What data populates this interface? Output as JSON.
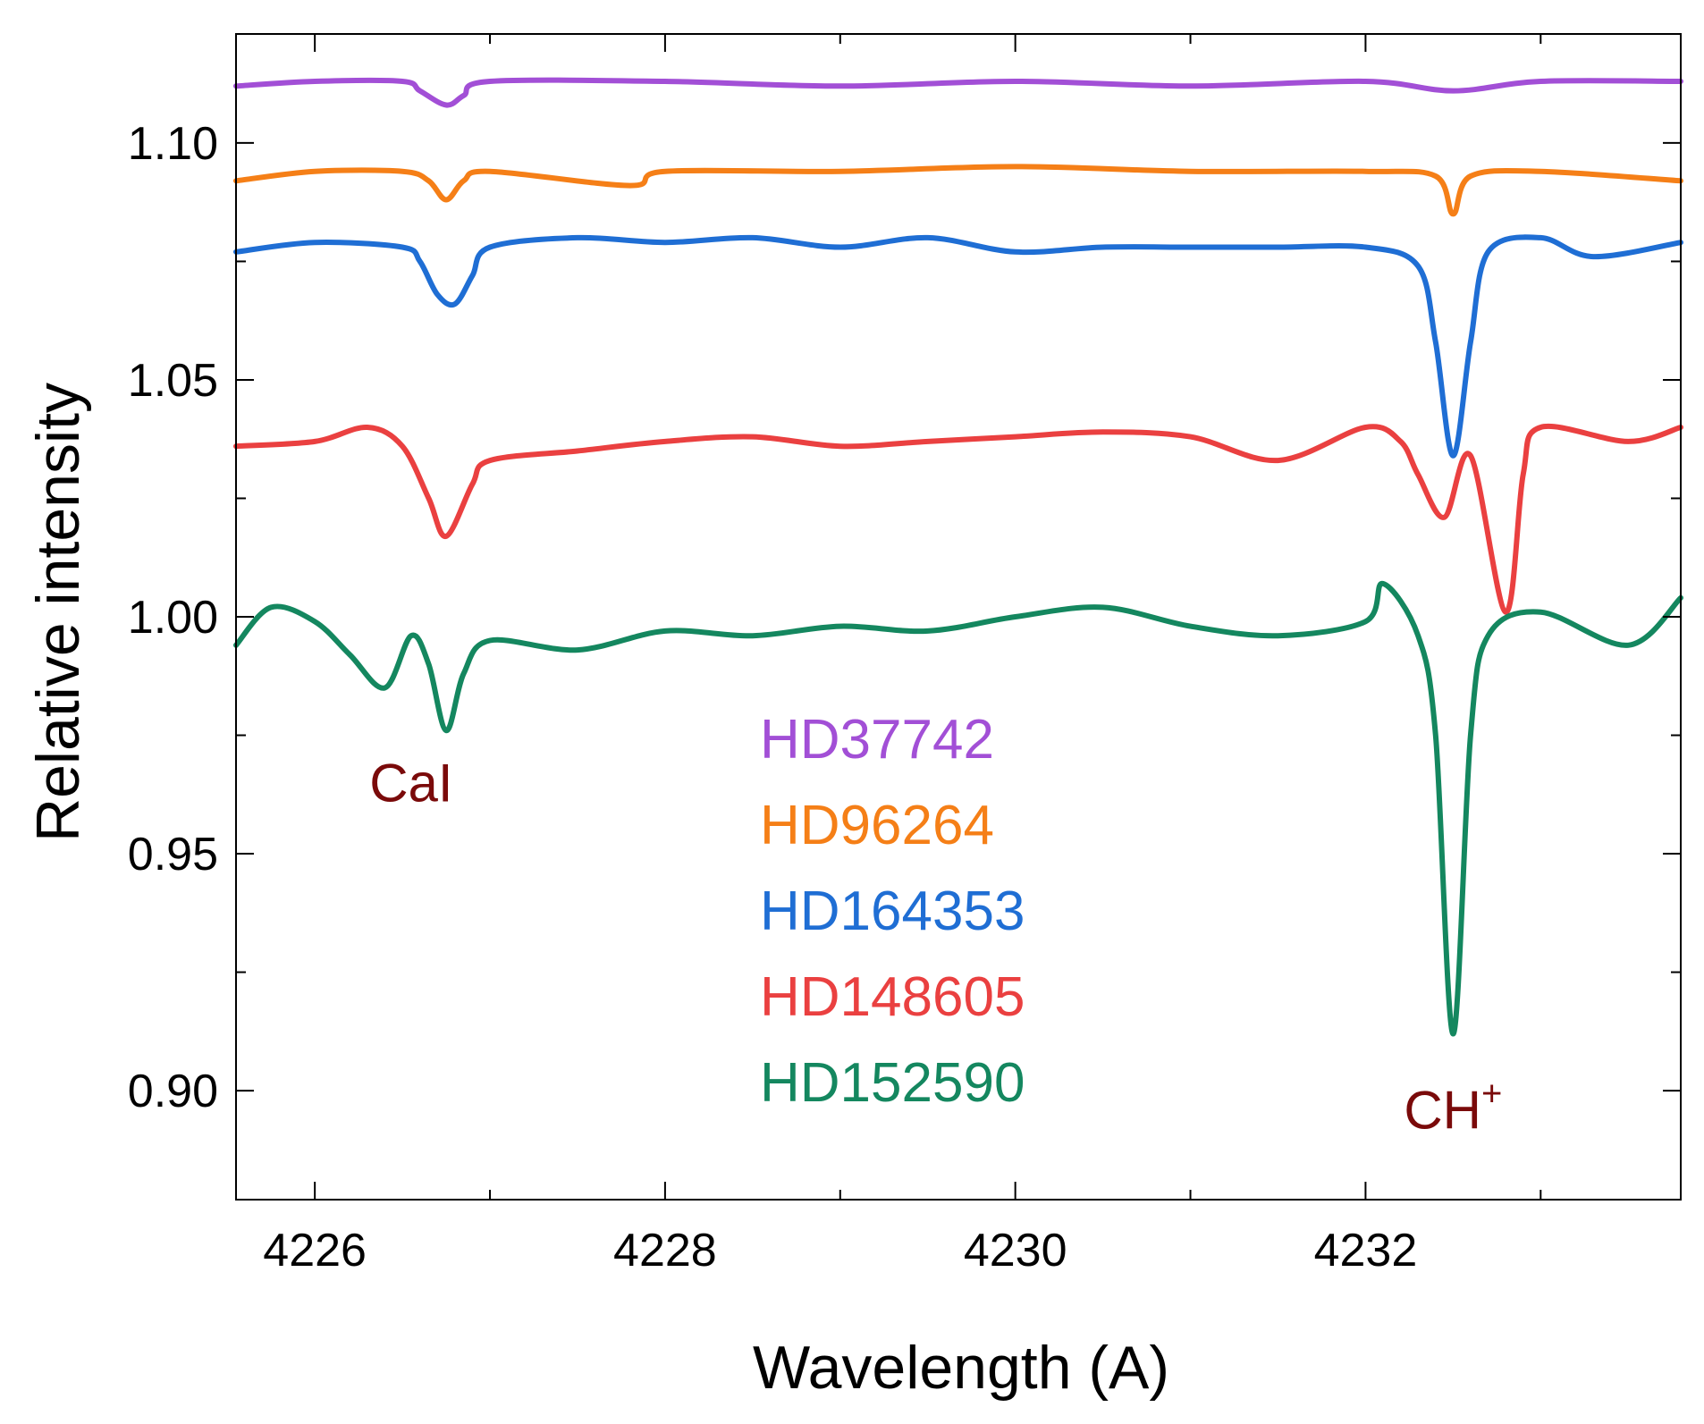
{
  "chart_data": {
    "type": "line",
    "title": "",
    "xlabel": "Wavelength (A)",
    "ylabel": "Relative intensity",
    "xlim": [
      4225.55,
      4233.8
    ],
    "ylim": [
      0.877,
      1.123
    ],
    "x_ticks": [
      4226,
      4228,
      4230,
      4232
    ],
    "x_tick_labels": [
      "4226",
      "4228",
      "4230",
      "4232"
    ],
    "y_ticks": [
      0.9,
      0.95,
      1.0,
      1.05,
      1.1
    ],
    "y_tick_labels": [
      "0.90",
      "0.95",
      "1.00",
      "1.05",
      "1.10"
    ],
    "grid": false,
    "series": [
      {
        "name": "HD37742",
        "color": "#a24fd6",
        "x": [
          4225.55,
          4226.0,
          4226.5,
          4226.6,
          4226.75,
          4226.85,
          4227.0,
          4228.0,
          4229.0,
          4230.0,
          4231.0,
          4232.0,
          4232.5,
          4233.0,
          4233.8
        ],
        "y": [
          1.112,
          1.113,
          1.113,
          1.111,
          1.108,
          1.11,
          1.113,
          1.113,
          1.112,
          1.113,
          1.112,
          1.113,
          1.111,
          1.113,
          1.113
        ]
      },
      {
        "name": "HD96264",
        "color": "#f57f17",
        "x": [
          4225.55,
          4226.0,
          4226.5,
          4226.65,
          4226.75,
          4226.85,
          4227.0,
          4227.8,
          4228.0,
          4229.0,
          4230.0,
          4231.0,
          4232.0,
          4232.4,
          4232.5,
          4232.6,
          4233.0,
          4233.8
        ],
        "y": [
          1.092,
          1.094,
          1.094,
          1.092,
          1.088,
          1.092,
          1.094,
          1.091,
          1.094,
          1.094,
          1.095,
          1.094,
          1.094,
          1.093,
          1.085,
          1.093,
          1.094,
          1.092
        ]
      },
      {
        "name": "HD164353",
        "color": "#1f6ed4",
        "x": [
          4225.55,
          4226.0,
          4226.5,
          4226.6,
          4226.7,
          4226.8,
          4226.9,
          4227.0,
          4227.5,
          4228.0,
          4228.5,
          4229.0,
          4229.5,
          4230.0,
          4230.5,
          4231.0,
          4231.5,
          4232.0,
          4232.3,
          4232.4,
          4232.5,
          4232.6,
          4232.7,
          4233.0,
          4233.3,
          4233.8
        ],
        "y": [
          1.077,
          1.079,
          1.078,
          1.075,
          1.068,
          1.066,
          1.072,
          1.078,
          1.08,
          1.079,
          1.08,
          1.078,
          1.08,
          1.077,
          1.078,
          1.078,
          1.078,
          1.078,
          1.074,
          1.058,
          1.034,
          1.058,
          1.077,
          1.08,
          1.076,
          1.079
        ]
      },
      {
        "name": "HD148605",
        "color": "#ea4040",
        "x": [
          4225.55,
          4226.0,
          4226.3,
          4226.5,
          4226.65,
          4226.75,
          4226.9,
          4227.0,
          4227.5,
          4228.0,
          4228.5,
          4229.0,
          4229.5,
          4230.0,
          4230.5,
          4231.0,
          4231.5,
          4232.0,
          4232.2,
          4232.3,
          4232.45,
          4232.6,
          4232.8,
          4232.9,
          4233.0,
          4233.5,
          4233.8
        ],
        "y": [
          1.036,
          1.037,
          1.04,
          1.036,
          1.025,
          1.017,
          1.028,
          1.033,
          1.035,
          1.037,
          1.038,
          1.036,
          1.037,
          1.038,
          1.039,
          1.038,
          1.033,
          1.04,
          1.037,
          1.03,
          1.021,
          1.034,
          1.001,
          1.03,
          1.04,
          1.037,
          1.04
        ]
      },
      {
        "name": "HD152590",
        "color": "#14875f",
        "x": [
          4225.55,
          4225.75,
          4226.0,
          4226.2,
          4226.4,
          4226.55,
          4226.65,
          4226.75,
          4226.85,
          4227.0,
          4227.5,
          4228.0,
          4228.5,
          4229.0,
          4229.5,
          4230.0,
          4230.5,
          4231.0,
          4231.5,
          4232.0,
          4232.1,
          4232.3,
          4232.4,
          4232.5,
          4232.6,
          4232.7,
          4233.0,
          4233.5,
          4233.8
        ],
        "y": [
          0.994,
          1.002,
          0.999,
          0.992,
          0.985,
          0.996,
          0.99,
          0.976,
          0.988,
          0.995,
          0.993,
          0.997,
          0.996,
          0.998,
          0.997,
          1.0,
          1.002,
          0.998,
          0.996,
          0.999,
          1.007,
          0.996,
          0.975,
          0.912,
          0.975,
          0.996,
          1.001,
          0.994,
          1.004
        ]
      }
    ],
    "legend": [
      "HD37742",
      "HD96264",
      "HD164353",
      "HD148605",
      "HD152590"
    ],
    "legend_position": "center",
    "annotations": [
      {
        "text": "CaI",
        "x": 4226.55,
        "y": 0.961
      },
      {
        "text": "CH",
        "superscript": "+",
        "x": 4232.5,
        "y": 0.892
      }
    ]
  }
}
